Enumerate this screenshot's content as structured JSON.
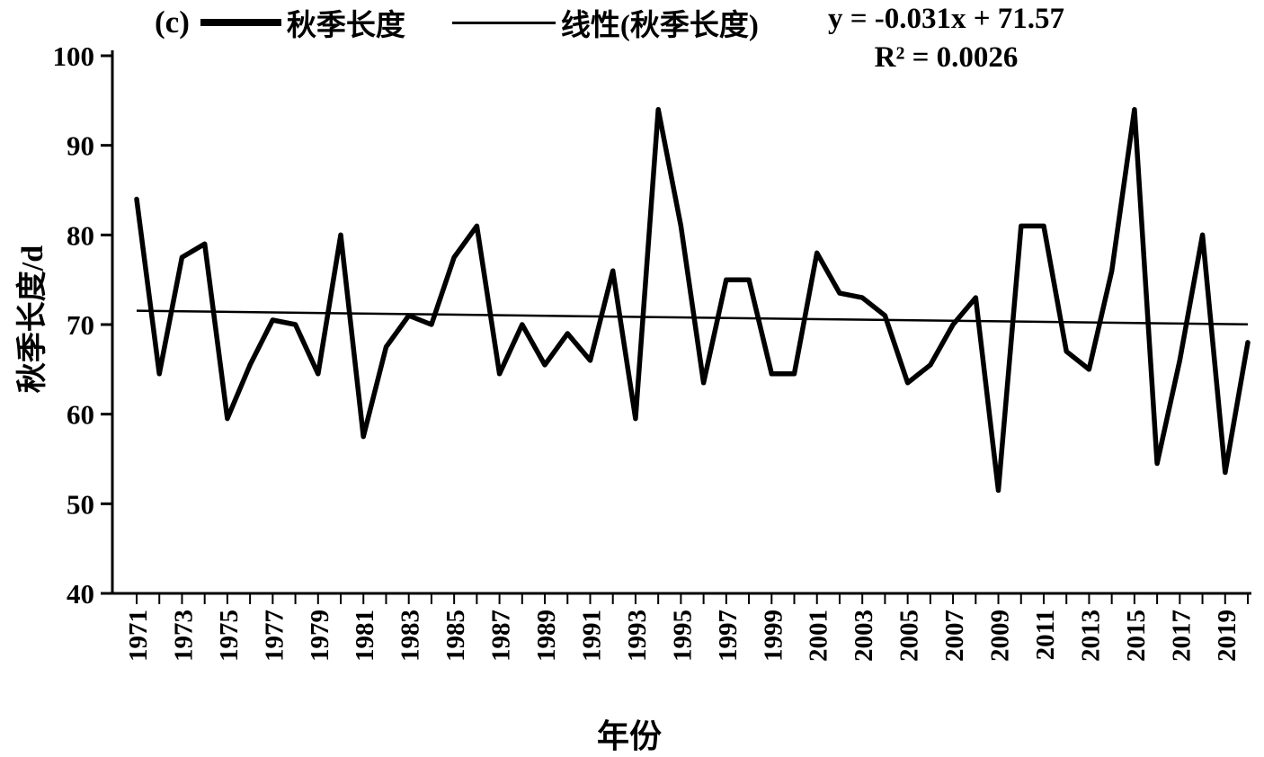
{
  "panel_label": "(c)",
  "legend": {
    "series_label": "秋季长度",
    "trend_label": "线性(秋季长度)"
  },
  "annotation": {
    "equation": "y = -0.031x + 71.57",
    "r_squared": "R² = 0.0026"
  },
  "axes": {
    "y_title": "秋季长度/d",
    "x_title": "年份"
  },
  "colors": {
    "series_line": "#000000",
    "trend_line": "#000000",
    "axis": "#000000",
    "background": "#ffffff"
  },
  "chart_data": {
    "type": "line",
    "title": "(c) 秋季长度",
    "xlabel": "年份",
    "ylabel": "秋季长度/d",
    "ylim": [
      40,
      100
    ],
    "grid": false,
    "legend_position": "top",
    "y_ticks": [
      40,
      50,
      60,
      70,
      80,
      90,
      100
    ],
    "x": [
      1971,
      1972,
      1973,
      1974,
      1975,
      1976,
      1977,
      1978,
      1979,
      1980,
      1981,
      1982,
      1983,
      1984,
      1985,
      1986,
      1987,
      1988,
      1989,
      1990,
      1991,
      1992,
      1993,
      1994,
      1995,
      1996,
      1997,
      1998,
      1999,
      2000,
      2001,
      2002,
      2003,
      2004,
      2005,
      2006,
      2007,
      2008,
      2009,
      2010,
      2011,
      2012,
      2013,
      2014,
      2015,
      2016,
      2017,
      2018,
      2019,
      2020
    ],
    "x_tick_labels": [
      1971,
      1973,
      1975,
      1977,
      1979,
      1981,
      1983,
      1985,
      1987,
      1989,
      1991,
      1993,
      1995,
      1997,
      1999,
      2001,
      2003,
      2005,
      2007,
      2009,
      2011,
      2013,
      2015,
      2017,
      2019
    ],
    "series": [
      {
        "name": "秋季长度",
        "values": [
          84,
          64.5,
          77.5,
          79,
          59.5,
          65.5,
          70.5,
          70,
          64.5,
          80,
          57.5,
          67.5,
          71,
          70,
          77.5,
          81,
          64.5,
          70,
          65.5,
          69,
          66,
          76,
          59.5,
          94,
          81,
          63.5,
          75,
          75,
          64.5,
          64.5,
          78,
          73.5,
          73,
          71,
          63.5,
          65.5,
          70,
          73,
          51.5,
          81,
          81,
          67,
          65,
          76,
          94,
          54.5,
          66,
          80,
          53.5,
          68
        ]
      },
      {
        "name": "线性(秋季长度)",
        "type": "trendline",
        "slope": -0.031,
        "intercept": 71.57,
        "equation": "y = -0.031x + 71.57",
        "r2": 0.0026
      }
    ]
  }
}
